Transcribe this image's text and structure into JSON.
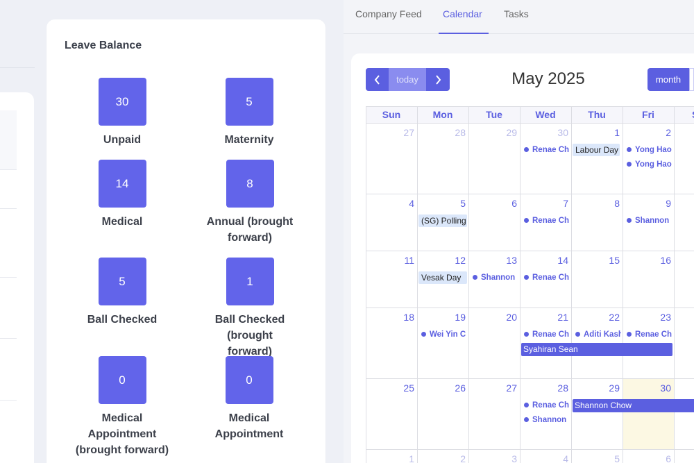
{
  "leave_balance": {
    "title": "Leave Balance",
    "items": [
      {
        "value": "30",
        "label": "Unpaid"
      },
      {
        "value": "5",
        "label": "Maternity"
      },
      {
        "value": "14",
        "label": "Medical"
      },
      {
        "value": "8",
        "label": "Annual (brought forward)"
      },
      {
        "value": "5",
        "label": "Ball Checked"
      },
      {
        "value": "1",
        "label": "Ball Checked (brought forward)"
      },
      {
        "value": "0",
        "label": "Medical Appointment (brought forward)"
      },
      {
        "value": "0",
        "label": "Medical Appointment"
      }
    ]
  },
  "tabs": [
    {
      "label": "Company Feed"
    },
    {
      "label": "Calendar"
    },
    {
      "label": "Tasks"
    }
  ],
  "calendar": {
    "title": "May 2025",
    "today_label": "today",
    "view_label": "month",
    "days_of_week": [
      "Sun",
      "Mon",
      "Tue",
      "Wed",
      "Thu",
      "Fri",
      "S"
    ],
    "weeks": [
      [
        "27",
        "28",
        "29",
        "30",
        "1",
        "2"
      ],
      [
        "4",
        "5",
        "6",
        "7",
        "8",
        "9"
      ],
      [
        "11",
        "12",
        "13",
        "14",
        "15",
        "16"
      ],
      [
        "18",
        "19",
        "20",
        "21",
        "22",
        "23"
      ],
      [
        "25",
        "26",
        "27",
        "28",
        "29",
        "30"
      ],
      [
        "1",
        "2",
        "3",
        "4",
        "5",
        "6"
      ]
    ],
    "events": {
      "renae_ch": "Renae Ch",
      "labour_day": "Labour Day",
      "yong_hao": "Yong Hao",
      "sg_polling": "(SG) Polling",
      "shannon": "Shannon",
      "vesak_day": "Vesak Day",
      "wei_yin": "Wei Yin C",
      "aditi": "Aditi Kash",
      "syahiran": "Syahiran Sean",
      "shannon_chow": "Shannon Chow"
    }
  },
  "colors": {
    "accent": "#5b5fe0",
    "leave_box": "#6264ea",
    "today_highlight": "#fcf8e3",
    "holiday_bg": "#dbe7fa"
  }
}
